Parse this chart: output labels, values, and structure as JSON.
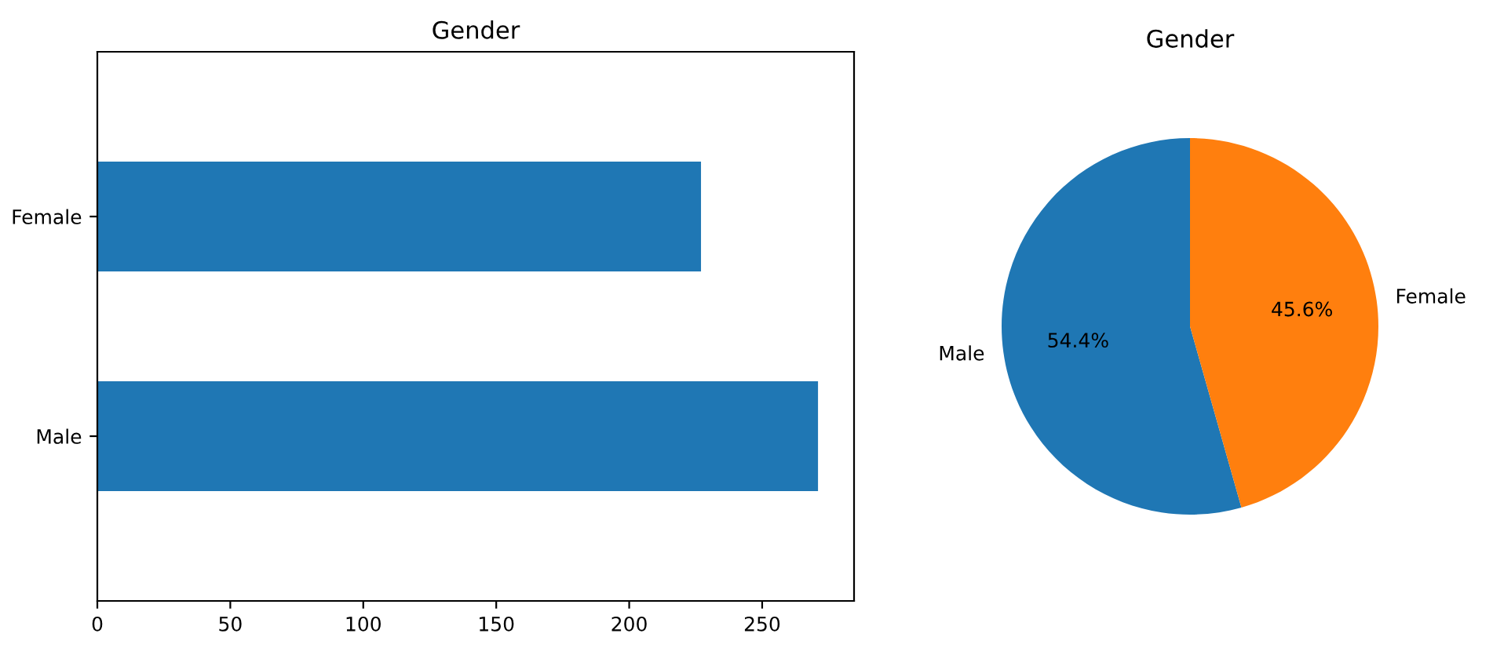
{
  "chart_data": [
    {
      "type": "bar",
      "title": "Gender",
      "orientation": "horizontal",
      "categories": [
        "Female",
        "Male"
      ],
      "values": [
        227,
        271
      ],
      "color": "#1f77b4",
      "xlim": [
        0,
        284.55
      ],
      "xticks": [
        0,
        50,
        100,
        150,
        200,
        250
      ],
      "grid": false,
      "legend": false
    },
    {
      "type": "pie",
      "title": "Gender",
      "categories": [
        "Male",
        "Female"
      ],
      "values": [
        54.4,
        45.6
      ],
      "colors": [
        "#1f77b4",
        "#ff7f0e"
      ],
      "value_labels": [
        "54.4%",
        "45.6%"
      ],
      "legend": false
    }
  ]
}
